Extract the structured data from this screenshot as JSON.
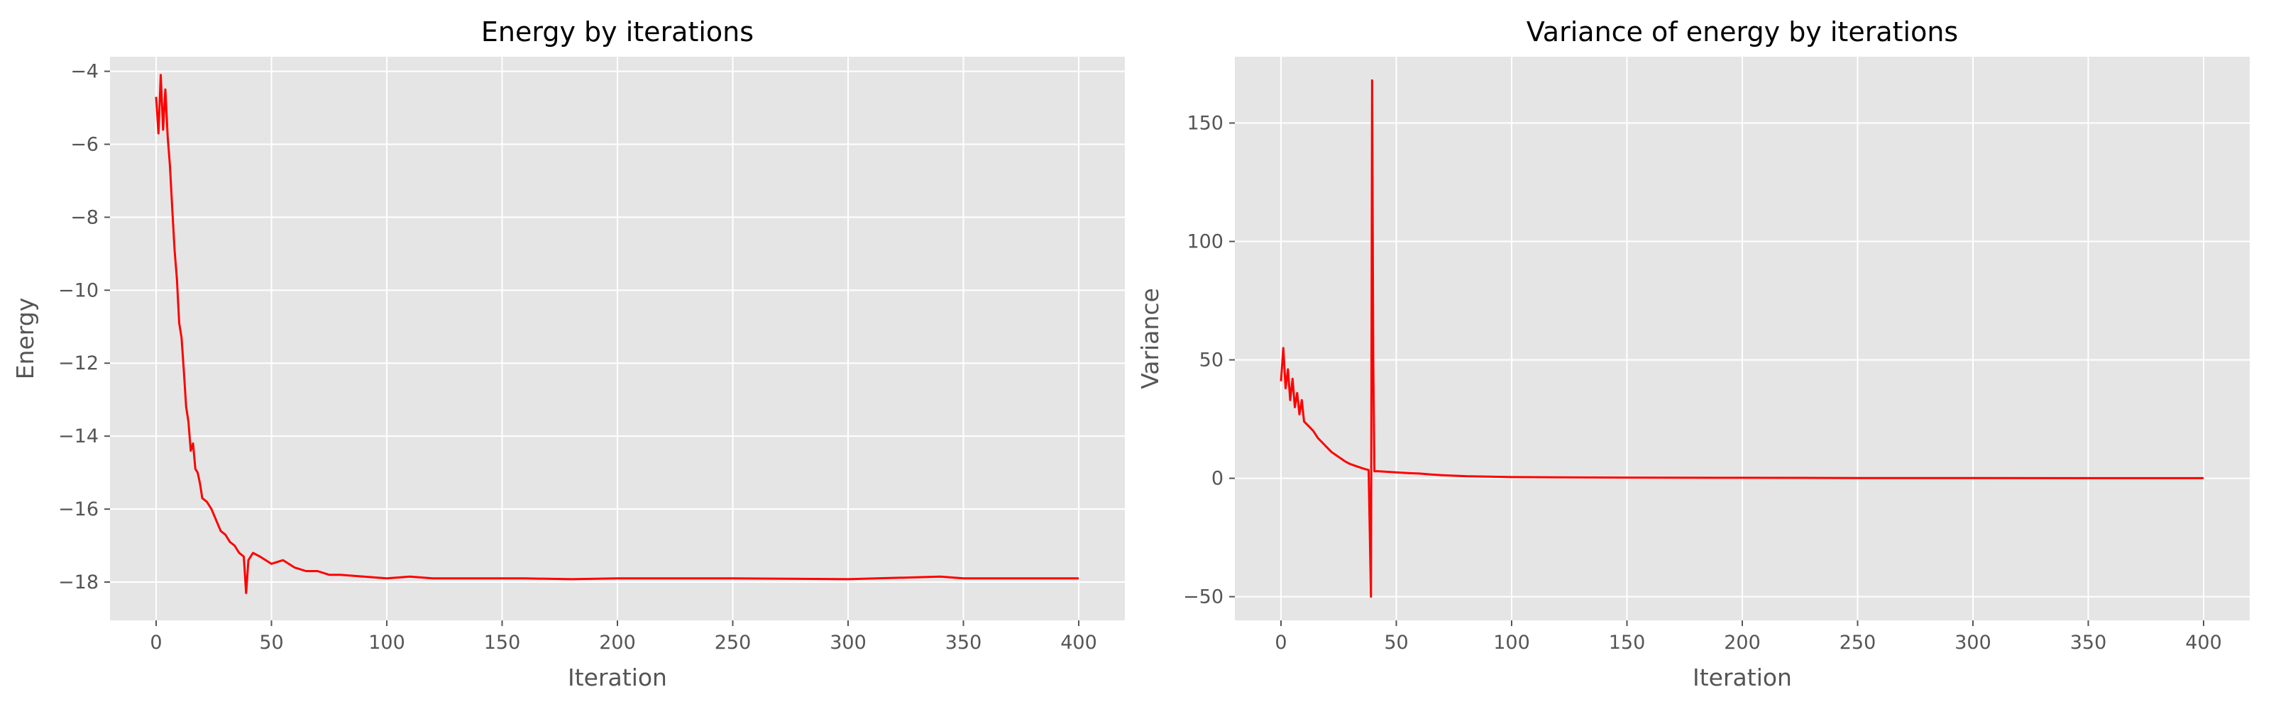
{
  "chart_data": [
    {
      "type": "line",
      "title": "Energy by iterations",
      "xlabel": "Iteration",
      "ylabel": "Energy",
      "xlim": [
        -20,
        420
      ],
      "ylim": [
        -19.05,
        -3.6
      ],
      "xticks": [
        0,
        50,
        100,
        150,
        200,
        250,
        300,
        350,
        400
      ],
      "yticks": [
        -18,
        -16,
        -14,
        -12,
        -10,
        -8,
        -6,
        -4
      ],
      "grid": true,
      "series": [
        {
          "color": "#ff0000",
          "x": [
            0,
            1,
            2,
            3,
            4,
            5,
            6,
            7,
            8,
            9,
            10,
            11,
            12,
            13,
            14,
            15,
            16,
            17,
            18,
            19,
            20,
            22,
            24,
            26,
            28,
            30,
            32,
            34,
            36,
            38,
            39,
            40,
            42,
            45,
            50,
            55,
            60,
            65,
            70,
            75,
            80,
            90,
            100,
            110,
            120,
            140,
            160,
            180,
            200,
            250,
            300,
            340,
            350,
            400
          ],
          "y": [
            -4.7,
            -5.7,
            -4.1,
            -5.6,
            -4.5,
            -5.8,
            -6.6,
            -7.8,
            -8.9,
            -9.7,
            -10.9,
            -11.3,
            -12.2,
            -13.2,
            -13.6,
            -14.4,
            -14.2,
            -14.9,
            -15.0,
            -15.3,
            -15.7,
            -15.8,
            -16.0,
            -16.3,
            -16.6,
            -16.7,
            -16.9,
            -17.0,
            -17.2,
            -17.3,
            -18.3,
            -17.4,
            -17.2,
            -17.3,
            -17.5,
            -17.4,
            -17.6,
            -17.7,
            -17.7,
            -17.8,
            -17.8,
            -17.85,
            -17.9,
            -17.85,
            -17.9,
            -17.9,
            -17.9,
            -17.92,
            -17.9,
            -17.9,
            -17.92,
            -17.85,
            -17.9,
            -17.9
          ]
        }
      ]
    },
    {
      "type": "line",
      "title": "Variance of energy by iterations",
      "xlabel": "Iteration",
      "ylabel": "Variance",
      "xlim": [
        -20,
        420
      ],
      "ylim": [
        -60,
        178
      ],
      "xticks": [
        0,
        50,
        100,
        150,
        200,
        250,
        300,
        350,
        400
      ],
      "yticks": [
        -50,
        0,
        50,
        100,
        150
      ],
      "grid": true,
      "series": [
        {
          "color": "#ff0000",
          "x": [
            0,
            1,
            2,
            3,
            4,
            5,
            6,
            7,
            8,
            9,
            10,
            12,
            14,
            16,
            18,
            20,
            22,
            25,
            28,
            30,
            33,
            36,
            38,
            39,
            39.5,
            40,
            40.5,
            41,
            42,
            45,
            50,
            55,
            60,
            65,
            70,
            80,
            90,
            100,
            120,
            150,
            200,
            250,
            300,
            350,
            400
          ],
          "y": [
            41,
            55,
            38,
            46,
            33,
            42,
            30,
            36,
            27,
            33,
            24,
            22,
            20,
            17,
            15,
            13,
            11,
            9,
            7,
            6,
            5,
            4,
            3.5,
            -50,
            168,
            50,
            3,
            3,
            3,
            2.8,
            2.5,
            2.2,
            2,
            1.6,
            1.3,
            0.9,
            0.7,
            0.5,
            0.4,
            0.3,
            0.2,
            0.1,
            0.1,
            0.05,
            0.05
          ]
        }
      ]
    }
  ]
}
